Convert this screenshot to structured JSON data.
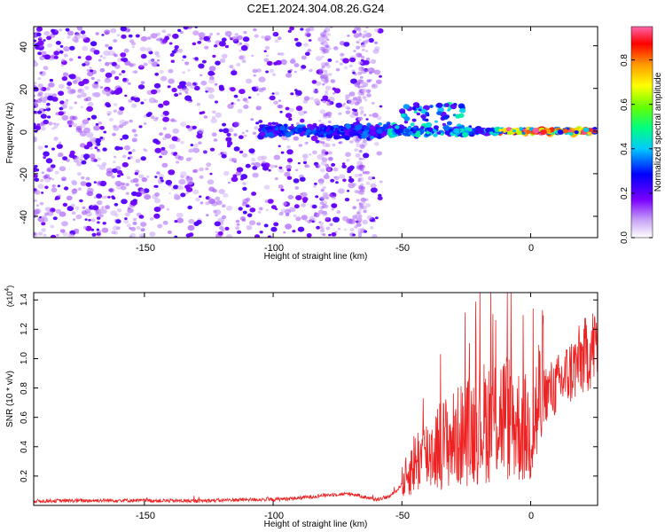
{
  "title": "C2E1.2024.304.08.26.G24",
  "chart_data": [
    {
      "type": "heatmap",
      "title": "C2E1.2024.304.08.26.G24",
      "xlabel": "Height of straight line (km)",
      "ylabel": "Frequency (Hz)",
      "xlim": [
        -193,
        26
      ],
      "ylim": [
        -50,
        49
      ],
      "xticks": [
        -150,
        -100,
        -50,
        0
      ],
      "yticks": [
        -40,
        -20,
        0,
        20,
        40
      ],
      "description_of_signal": "Scattered noise speckles below -60 km; coherent near-zero-frequency band from about -105 km to 25 km, peak amplitude near 0.9 close to 0 Hz between -10 and 25 km",
      "band_center_hz": 0,
      "colorbar": {
        "label": "Normalized spectral amplitude",
        "range": [
          0.0,
          0.95
        ],
        "ticks": [
          0.0,
          0.2,
          0.4,
          0.6,
          0.8
        ],
        "tick_labels": [
          "0.0",
          "0.2",
          "0.4",
          "0.6",
          "0.8"
        ],
        "colors": [
          "#ffffff",
          "#c9a6f5",
          "#7a00ff",
          "#0000ff",
          "#00c8ff",
          "#00ff80",
          "#66ff00",
          "#ffff00",
          "#ff9900",
          "#ff0000",
          "#ff66aa"
        ]
      }
    },
    {
      "type": "line",
      "xlabel": "Height of straight line (km)",
      "ylabel": "SNR (10 * v/v)",
      "y_multiplier_label": "(x10",
      "y_multiplier_exp": "4",
      "y_multiplier_close": ")",
      "xlim": [
        -193,
        26
      ],
      "ylim": [
        0,
        1.45
      ],
      "xticks": [
        -150,
        -100,
        -50,
        0
      ],
      "yticks": [
        0.2,
        0.4,
        0.6,
        0.8,
        1.0,
        1.2,
        1.4
      ],
      "ytick_labels": [
        "0.2",
        "0.4",
        "0.6",
        "0.8",
        "1.0",
        "1.2",
        "1.4"
      ],
      "color": "#ee2222",
      "series_name": "SNR",
      "x": [
        -193,
        -160,
        -130,
        -110,
        -100,
        -90,
        -80,
        -70,
        -60,
        -55,
        -52,
        -48,
        -45,
        -40,
        -35,
        -30,
        -25,
        -20,
        -15,
        -10,
        -5,
        0,
        5,
        10,
        15,
        20,
        25
      ],
      "y": [
        0.03,
        0.035,
        0.03,
        0.04,
        0.04,
        0.05,
        0.07,
        0.08,
        0.04,
        0.06,
        0.1,
        0.2,
        0.3,
        0.35,
        0.42,
        0.45,
        0.5,
        0.55,
        0.6,
        0.62,
        0.55,
        0.5,
        0.8,
        0.85,
        0.95,
        1.05,
        1.15
      ]
    }
  ],
  "panels": {
    "top": {
      "x_tick_labels": [
        "-150",
        "-100",
        "-50",
        "0"
      ],
      "y_tick_labels": [
        "-40",
        "-20",
        "0",
        "20",
        "40"
      ],
      "xlabel": "Height of straight line (km)",
      "ylabel": "Frequency (Hz)"
    },
    "bottom": {
      "x_tick_labels": [
        "-150",
        "-100",
        "-50",
        "0"
      ],
      "xlabel": "Height of straight line (km)",
      "ylabel": "SNR (10 * v/v)"
    }
  }
}
